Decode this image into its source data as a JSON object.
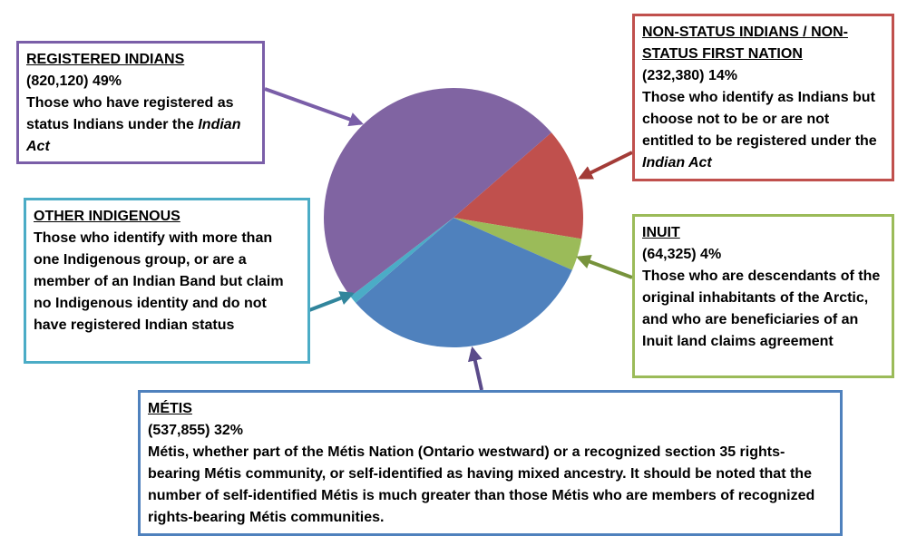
{
  "chart_data": {
    "type": "pie",
    "categories": [
      "NON-STATUS INDIANS / NON-STATUS FIRST NATION",
      "INUIT",
      "MÉTIS",
      "OTHER INDIGENOUS",
      "REGISTERED INDIANS"
    ],
    "values": [
      14,
      4,
      32,
      1,
      49
    ],
    "value_labels": [
      "(232,380) 14%",
      "(64,325) 4%",
      "(537,855) 32%",
      null,
      "(820,120) 49%"
    ],
    "colors": [
      "#c0504d",
      "#9bbb59",
      "#4f81bd",
      "#4bacc6",
      "#8064a2"
    ],
    "descriptions": [
      [
        {
          "text": "Those who identify as Indians but choose not to be or are not entitled to be registered under the ",
          "italic": false
        },
        {
          "text": "Indian Act",
          "italic": true
        }
      ],
      [
        {
          "text": "Those who are descendants of the original inhabitants of the Arctic, and who are beneficiaries of an Inuit land claims agreement",
          "italic": false
        }
      ],
      [
        {
          "text": "Métis, whether part of the Métis Nation (Ontario westward) or a recognized section 35 rights-bearing Métis community, or self-identified as having mixed ancestry. It should be noted that the number of self-identified Métis is much greater than those Métis who are members of recognized rights-bearing Métis communities.",
          "italic": false
        }
      ],
      [
        {
          "text": "Those who identify with more than one Indigenous group, or are a member of an Indian Band but claim no Indigenous identity and do not have registered Indian status",
          "italic": false
        }
      ],
      [
        {
          "text": "Those who have registered as status Indians under the ",
          "italic": false
        },
        {
          "text": "Indian Act",
          "italic": true
        }
      ]
    ]
  }
}
